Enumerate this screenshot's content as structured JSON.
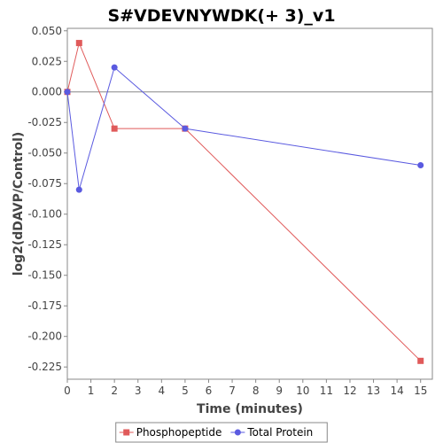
{
  "chart_data": {
    "type": "line",
    "title": "S#VDEVNYWDK(+ 3)_v1",
    "xlabel": "Time (minutes)",
    "ylabel": "log2(dDAVP/Control)",
    "xlim": [
      0,
      15.5
    ],
    "ylim": [
      -0.235,
      0.052
    ],
    "x_ticks": [
      0,
      1,
      2,
      3,
      4,
      5,
      6,
      7,
      8,
      9,
      10,
      11,
      12,
      13,
      14,
      15
    ],
    "y_ticks": [
      0.05,
      0.025,
      0.0,
      -0.025,
      -0.05,
      -0.075,
      -0.1,
      -0.125,
      -0.15,
      -0.175,
      -0.2,
      -0.225
    ],
    "y_tick_labels": [
      "0.050",
      "0.025",
      "0.000",
      "-0.025",
      "-0.050",
      "-0.075",
      "-0.100",
      "-0.125",
      "-0.150",
      "-0.175",
      "-0.200",
      "-0.225"
    ],
    "zero_line": true,
    "grid": false,
    "legend_position": "bottom",
    "series": [
      {
        "name": "Phosphopeptide",
        "color": "#e05a5a",
        "marker": "square",
        "x": [
          0,
          0.5,
          2,
          5,
          15
        ],
        "y": [
          0.0,
          0.04,
          -0.03,
          -0.03,
          -0.22
        ]
      },
      {
        "name": "Total Protein",
        "color": "#5a5ae0",
        "marker": "circle",
        "x": [
          0,
          0.5,
          2,
          5,
          15
        ],
        "y": [
          0.0,
          -0.08,
          0.02,
          -0.03,
          -0.06
        ]
      }
    ]
  }
}
